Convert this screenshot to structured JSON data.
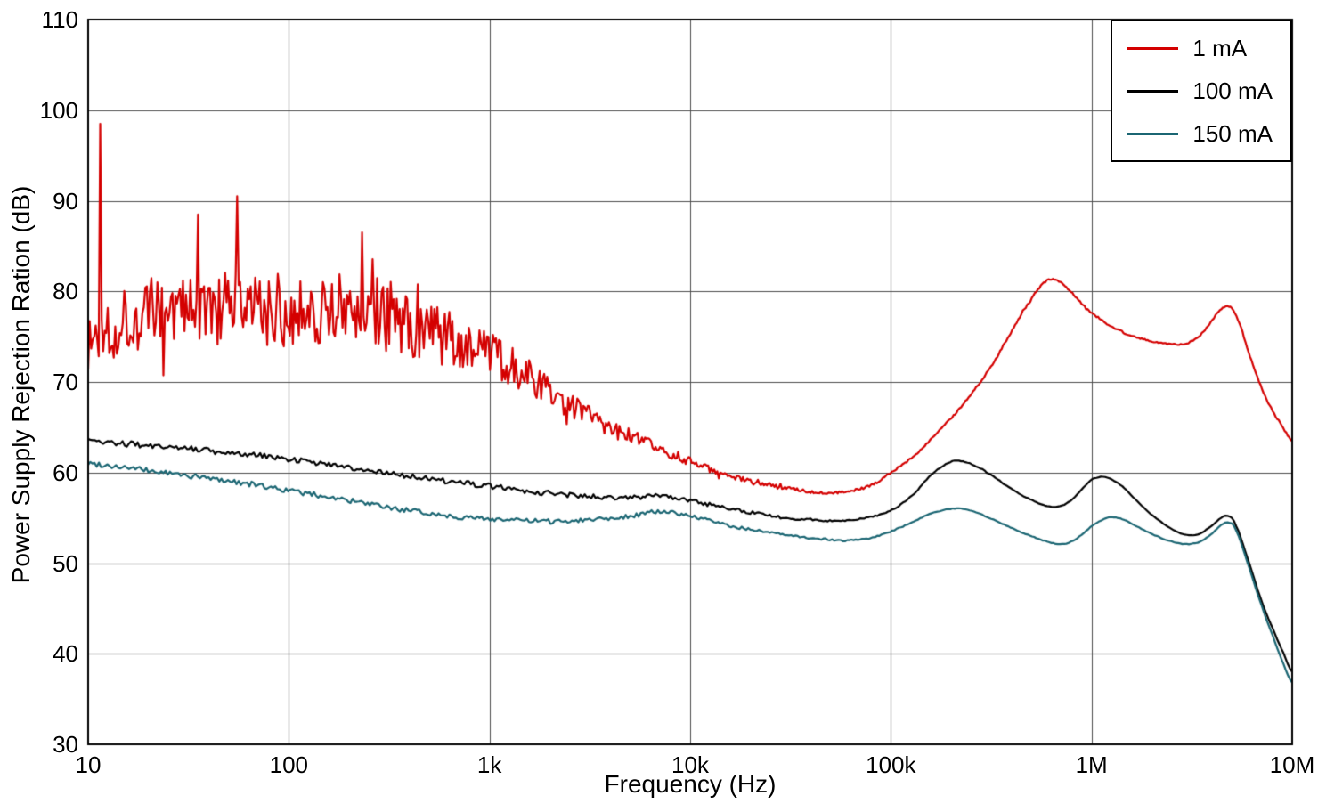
{
  "chart_data": {
    "type": "line",
    "title": "",
    "xlabel": "Frequency (Hz)",
    "ylabel": "Power Supply Rejection Ration (dB)",
    "x_scale": "log",
    "xlim": [
      10,
      10000000
    ],
    "ylim": [
      30,
      110
    ],
    "grid": true,
    "colors": {
      "grid": "#4d4d4d",
      "axis": "#000000",
      "background": "#ffffff"
    },
    "x_ticks": [
      {
        "v": 10,
        "label": "10"
      },
      {
        "v": 100,
        "label": "100"
      },
      {
        "v": 1000,
        "label": "1k"
      },
      {
        "v": 10000,
        "label": "10k"
      },
      {
        "v": 100000,
        "label": "100k"
      },
      {
        "v": 1000000,
        "label": "1M"
      },
      {
        "v": 10000000,
        "label": "10M"
      }
    ],
    "y_ticks": [
      {
        "v": 30,
        "label": "30"
      },
      {
        "v": 40,
        "label": "40"
      },
      {
        "v": 50,
        "label": "50"
      },
      {
        "v": 60,
        "label": "60"
      },
      {
        "v": 70,
        "label": "70"
      },
      {
        "v": 80,
        "label": "80"
      },
      {
        "v": 90,
        "label": "90"
      },
      {
        "v": 100,
        "label": "100"
      },
      {
        "v": 110,
        "label": "110"
      }
    ],
    "legend": {
      "position": "top-right",
      "entries": [
        {
          "label": "1 mA",
          "color": "#d40000"
        },
        {
          "label": "100 mA",
          "color": "#000000"
        },
        {
          "label": "150 mA",
          "color": "#1b6673"
        }
      ]
    },
    "series": [
      {
        "name": "1 mA",
        "color": "#d40000",
        "seed": 1337,
        "samples": 800,
        "spiky": true,
        "points": [
          [
            10,
            74
          ],
          [
            12,
            76
          ],
          [
            15,
            77
          ],
          [
            20,
            77.5
          ],
          [
            30,
            78
          ],
          [
            40,
            77.6
          ],
          [
            50,
            78
          ],
          [
            70,
            77.8
          ],
          [
            100,
            78
          ],
          [
            130,
            78.2
          ],
          [
            160,
            78
          ],
          [
            200,
            78
          ],
          [
            250,
            77.8
          ],
          [
            300,
            77.5
          ],
          [
            400,
            76.5
          ],
          [
            500,
            75.5
          ],
          [
            600,
            74.8
          ],
          [
            700,
            74.2
          ],
          [
            800,
            73.8
          ],
          [
            1000,
            73
          ],
          [
            1300,
            71.8
          ],
          [
            1600,
            70.5
          ],
          [
            2000,
            68.8
          ],
          [
            2500,
            67.5
          ],
          [
            3000,
            66.5
          ],
          [
            4000,
            65
          ],
          [
            5000,
            64
          ],
          [
            6000,
            63.2
          ],
          [
            7000,
            62.6
          ],
          [
            8000,
            62.1
          ],
          [
            10000,
            61.2
          ],
          [
            13000,
            60.2
          ],
          [
            16000,
            59.6
          ],
          [
            20000,
            59
          ],
          [
            25000,
            58.6
          ],
          [
            30000,
            58.3
          ],
          [
            40000,
            57.9
          ],
          [
            50000,
            57.8
          ],
          [
            60000,
            57.9
          ],
          [
            80000,
            58.6
          ],
          [
            100000,
            60
          ],
          [
            130000,
            61.8
          ],
          [
            160000,
            63.8
          ],
          [
            200000,
            66
          ],
          [
            250000,
            68.6
          ],
          [
            300000,
            71
          ],
          [
            400000,
            75.5
          ],
          [
            500000,
            79
          ],
          [
            550000,
            80.4
          ],
          [
            600000,
            81.2
          ],
          [
            650000,
            81.4
          ],
          [
            700000,
            81
          ],
          [
            800000,
            79.8
          ],
          [
            900000,
            78.6
          ],
          [
            1000000,
            77.6
          ],
          [
            1200000,
            76.4
          ],
          [
            1500000,
            75.3
          ],
          [
            2000000,
            74.5
          ],
          [
            2500000,
            74.2
          ],
          [
            3000000,
            74.3
          ],
          [
            3500000,
            75.2
          ],
          [
            4000000,
            76.8
          ],
          [
            4300000,
            77.8
          ],
          [
            4600000,
            78.3
          ],
          [
            5000000,
            78.1
          ],
          [
            5500000,
            76.3
          ],
          [
            6000000,
            73.5
          ],
          [
            7000000,
            69.5
          ],
          [
            8000000,
            66.8
          ],
          [
            9000000,
            65
          ],
          [
            10000000,
            63.5
          ]
        ],
        "noise": [
          [
            10,
            4.2
          ],
          [
            300,
            4.2
          ],
          [
            600,
            3.2
          ],
          [
            1000,
            2.6
          ],
          [
            2000,
            1.6
          ],
          [
            4000,
            1.0
          ],
          [
            8000,
            0.6
          ],
          [
            15000,
            0.35
          ],
          [
            30000,
            0.2
          ],
          [
            80000,
            0.12
          ],
          [
            10000000,
            0.08
          ]
        ],
        "spikes": [
          [
            11.5,
            98.5
          ],
          [
            35,
            88.5
          ],
          [
            55,
            90.5
          ],
          [
            230,
            86.5
          ]
        ]
      },
      {
        "name": "100 mA",
        "color": "#000000",
        "seed": 2024,
        "samples": 560,
        "spiky": false,
        "points": [
          [
            10,
            63.5
          ],
          [
            15,
            63.2
          ],
          [
            20,
            63
          ],
          [
            30,
            62.7
          ],
          [
            50,
            62.2
          ],
          [
            70,
            61.9
          ],
          [
            100,
            61.5
          ],
          [
            150,
            61
          ],
          [
            200,
            60.6
          ],
          [
            300,
            60
          ],
          [
            500,
            59.3
          ],
          [
            700,
            58.9
          ],
          [
            1000,
            58.5
          ],
          [
            1500,
            58
          ],
          [
            2000,
            57.7
          ],
          [
            3000,
            57.4
          ],
          [
            4000,
            57.2
          ],
          [
            5000,
            57.2
          ],
          [
            6000,
            57.3
          ],
          [
            7000,
            57.5
          ],
          [
            8000,
            57.3
          ],
          [
            10000,
            56.9
          ],
          [
            13000,
            56.4
          ],
          [
            16000,
            56
          ],
          [
            20000,
            55.6
          ],
          [
            30000,
            55
          ],
          [
            40000,
            54.8
          ],
          [
            50000,
            54.7
          ],
          [
            60000,
            54.7
          ],
          [
            80000,
            55.1
          ],
          [
            100000,
            55.8
          ],
          [
            130000,
            57.6
          ],
          [
            160000,
            59.8
          ],
          [
            200000,
            61.2
          ],
          [
            230000,
            61.2
          ],
          [
            260000,
            60.8
          ],
          [
            300000,
            60
          ],
          [
            400000,
            58.2
          ],
          [
            500000,
            57
          ],
          [
            600000,
            56.3
          ],
          [
            700000,
            56.3
          ],
          [
            800000,
            57
          ],
          [
            900000,
            58.2
          ],
          [
            1000000,
            59.2
          ],
          [
            1100000,
            59.5
          ],
          [
            1200000,
            59.4
          ],
          [
            1400000,
            58.6
          ],
          [
            1700000,
            56.8
          ],
          [
            2000000,
            55.3
          ],
          [
            2500000,
            53.8
          ],
          [
            3000000,
            53.1
          ],
          [
            3500000,
            53.3
          ],
          [
            4000000,
            54.2
          ],
          [
            4500000,
            55.1
          ],
          [
            4800000,
            55.2
          ],
          [
            5200000,
            54.3
          ],
          [
            6000000,
            50.5
          ],
          [
            7000000,
            46
          ],
          [
            8000000,
            42.8
          ],
          [
            9000000,
            40.2
          ],
          [
            10000000,
            38
          ]
        ],
        "noise": [
          [
            10,
            0.32
          ],
          [
            5000,
            0.28
          ],
          [
            20000,
            0.18
          ],
          [
            60000,
            0.09
          ],
          [
            150000,
            0.04
          ],
          [
            10000000,
            0.03
          ]
        ],
        "spikes": []
      },
      {
        "name": "150 mA",
        "color": "#1b6673",
        "seed": 99,
        "samples": 560,
        "spiky": false,
        "points": [
          [
            10,
            61
          ],
          [
            15,
            60.6
          ],
          [
            20,
            60.2
          ],
          [
            30,
            59.7
          ],
          [
            50,
            59.1
          ],
          [
            70,
            58.6
          ],
          [
            100,
            58
          ],
          [
            150,
            57.4
          ],
          [
            200,
            56.9
          ],
          [
            300,
            56.2
          ],
          [
            400,
            55.8
          ],
          [
            500,
            55.5
          ],
          [
            700,
            55.1
          ],
          [
            1000,
            54.9
          ],
          [
            1500,
            54.7
          ],
          [
            2000,
            54.6
          ],
          [
            3000,
            54.8
          ],
          [
            4000,
            55
          ],
          [
            5000,
            55.2
          ],
          [
            6000,
            55.5
          ],
          [
            7000,
            55.7
          ],
          [
            8000,
            55.6
          ],
          [
            10000,
            55.2
          ],
          [
            13000,
            54.6
          ],
          [
            16000,
            54.1
          ],
          [
            20000,
            53.7
          ],
          [
            30000,
            53.1
          ],
          [
            40000,
            52.8
          ],
          [
            50000,
            52.6
          ],
          [
            60000,
            52.5
          ],
          [
            80000,
            52.8
          ],
          [
            100000,
            53.5
          ],
          [
            130000,
            54.6
          ],
          [
            160000,
            55.5
          ],
          [
            200000,
            56
          ],
          [
            230000,
            56
          ],
          [
            260000,
            55.7
          ],
          [
            300000,
            55.1
          ],
          [
            400000,
            53.9
          ],
          [
            500000,
            53
          ],
          [
            600000,
            52.4
          ],
          [
            700000,
            52.1
          ],
          [
            800000,
            52.4
          ],
          [
            900000,
            53.2
          ],
          [
            1000000,
            54.1
          ],
          [
            1200000,
            55
          ],
          [
            1400000,
            54.9
          ],
          [
            1700000,
            54
          ],
          [
            2000000,
            53.2
          ],
          [
            2500000,
            52.4
          ],
          [
            3000000,
            52.1
          ],
          [
            3500000,
            52.4
          ],
          [
            4000000,
            53.3
          ],
          [
            4500000,
            54.3
          ],
          [
            4800000,
            54.5
          ],
          [
            5200000,
            53.8
          ],
          [
            6000000,
            50
          ],
          [
            7000000,
            45.5
          ],
          [
            8000000,
            42
          ],
          [
            9000000,
            39
          ],
          [
            10000000,
            36.8
          ]
        ],
        "noise": [
          [
            10,
            0.3
          ],
          [
            5000,
            0.26
          ],
          [
            20000,
            0.16
          ],
          [
            60000,
            0.09
          ],
          [
            150000,
            0.04
          ],
          [
            10000000,
            0.03
          ]
        ],
        "spikes": []
      }
    ]
  }
}
